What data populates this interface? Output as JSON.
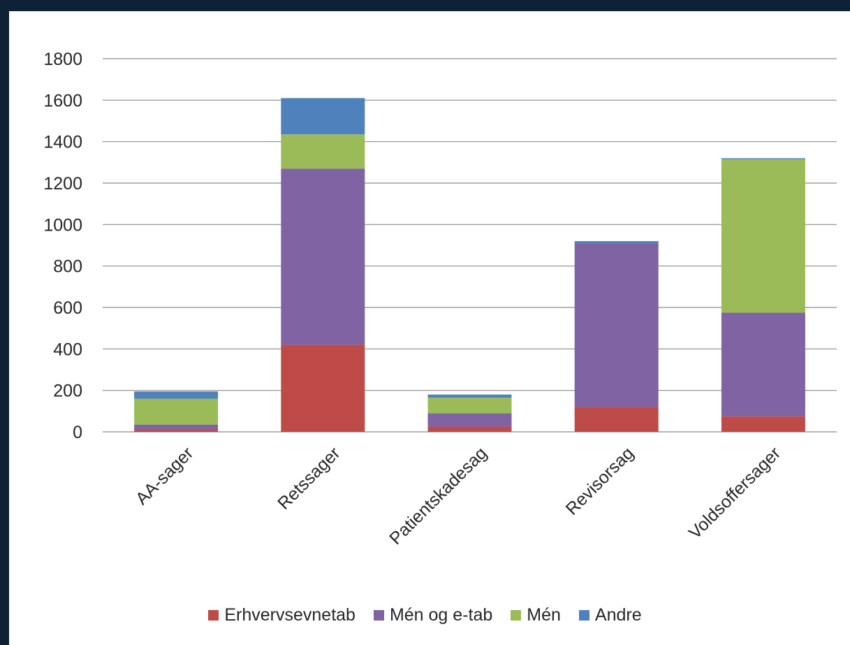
{
  "chart_data": {
    "type": "bar",
    "stacked": true,
    "categories": [
      "AA-sager",
      "Retssager",
      "Patientskadesag",
      "Revisorsag",
      "Voldsoffersager"
    ],
    "series": [
      {
        "name": "Erhvervsevnetab",
        "color": "#be4b48",
        "values": [
          10,
          420,
          25,
          120,
          75
        ]
      },
      {
        "name": "Mén og e-tab",
        "color": "#7f63a2",
        "values": [
          25,
          850,
          65,
          790,
          500
        ]
      },
      {
        "name": "Mén",
        "color": "#9bbb59",
        "values": [
          125,
          165,
          75,
          0,
          740
        ]
      },
      {
        "name": "Andre",
        "color": "#4f81bd",
        "values": [
          35,
          175,
          15,
          10,
          5
        ]
      }
    ],
    "ylim": [
      0,
      1800
    ],
    "yticks": [
      0,
      200,
      400,
      600,
      800,
      1000,
      1200,
      1400,
      1600,
      1800
    ],
    "grid": true,
    "legend_position": "bottom"
  }
}
